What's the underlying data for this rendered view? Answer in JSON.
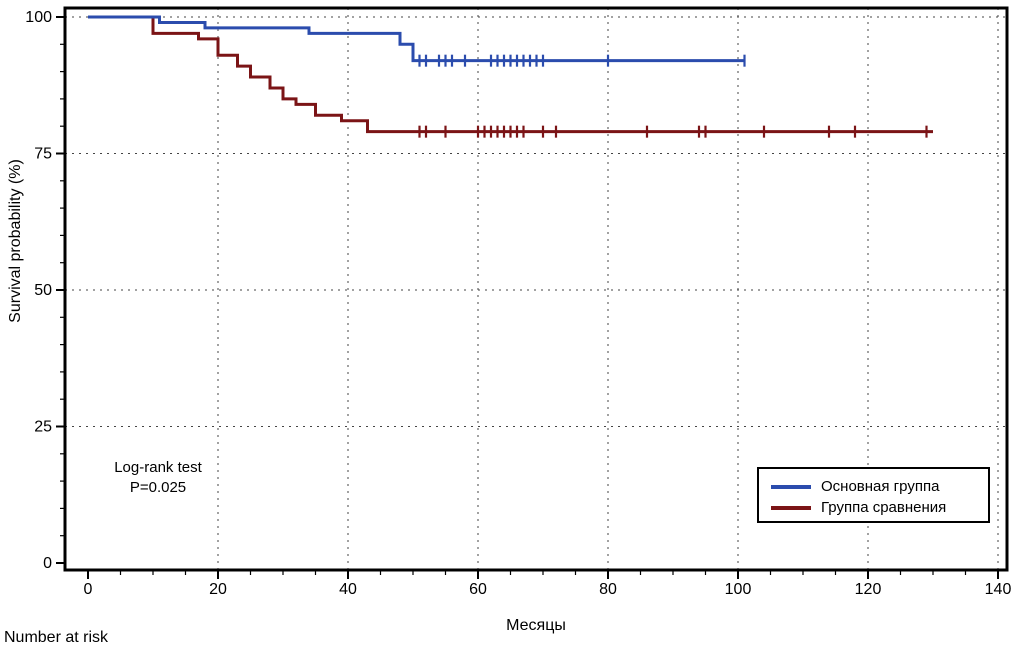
{
  "chart_data": {
    "type": "line",
    "subtype": "kaplan-meier-step",
    "title": "",
    "xlabel": "Месяцы",
    "ylabel": "Survival probability (%)",
    "xlim": [
      0,
      140
    ],
    "ylim": [
      0,
      100
    ],
    "x_ticks": [
      0,
      20,
      40,
      60,
      80,
      100,
      120,
      140
    ],
    "y_ticks": [
      0,
      25,
      50,
      75,
      100
    ],
    "x_minor_step": 5,
    "y_minor_step": 5,
    "grid": "dashed",
    "grid_color": "#444444",
    "annotation": {
      "line1": "Log-rank test",
      "line2": "P=0.025"
    },
    "legend": {
      "position": "bottom-right",
      "entries": [
        {
          "label": "Основная группа",
          "color": "#2b4cad"
        },
        {
          "label": "Группа сравнения",
          "color": "#7b1416"
        }
      ]
    },
    "series": [
      {
        "name": "Группа сравнения",
        "color": "#7b1416",
        "steps": [
          [
            0,
            100
          ],
          [
            10,
            100
          ],
          [
            10,
            97
          ],
          [
            17,
            97
          ],
          [
            17,
            96
          ],
          [
            20,
            96
          ],
          [
            20,
            93
          ],
          [
            23,
            93
          ],
          [
            23,
            91
          ],
          [
            25,
            91
          ],
          [
            25,
            89
          ],
          [
            28,
            89
          ],
          [
            28,
            87
          ],
          [
            30,
            87
          ],
          [
            30,
            85
          ],
          [
            32,
            85
          ],
          [
            32,
            84
          ],
          [
            35,
            84
          ],
          [
            35,
            82
          ],
          [
            39,
            82
          ],
          [
            39,
            81
          ],
          [
            43,
            81
          ],
          [
            43,
            79
          ],
          [
            130,
            79
          ]
        ],
        "censor_y": 79,
        "censors": [
          51,
          52,
          55,
          60,
          61,
          62,
          63,
          64,
          65,
          66,
          67,
          70,
          72,
          86,
          94,
          95,
          104,
          114,
          118,
          129
        ]
      },
      {
        "name": "Основная группа",
        "color": "#2b4cad",
        "steps": [
          [
            0,
            100
          ],
          [
            11,
            100
          ],
          [
            11,
            99
          ],
          [
            18,
            99
          ],
          [
            18,
            98
          ],
          [
            34,
            98
          ],
          [
            34,
            97
          ],
          [
            48,
            97
          ],
          [
            48,
            95
          ],
          [
            50,
            95
          ],
          [
            50,
            92
          ],
          [
            101,
            92
          ]
        ],
        "censor_y": 92,
        "censors": [
          51,
          52,
          54,
          55,
          56,
          58,
          62,
          63,
          64,
          65,
          66,
          67,
          68,
          69,
          70,
          80,
          101
        ]
      }
    ]
  },
  "footer": {
    "number_at_risk": "Number at risk"
  }
}
